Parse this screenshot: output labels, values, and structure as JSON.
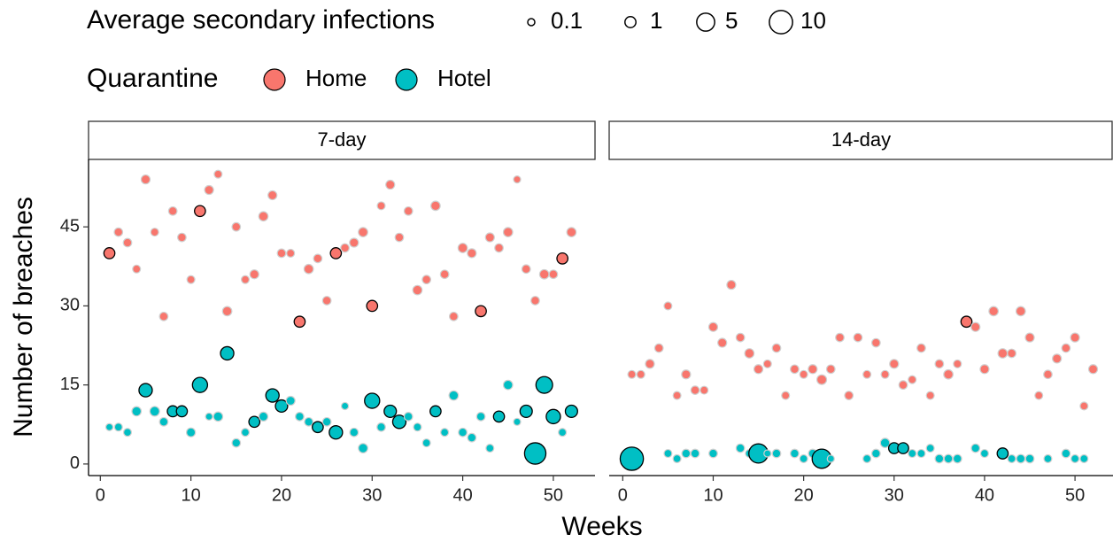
{
  "chart_data": [
    {
      "type": "scatter",
      "title": "7-day",
      "x_label": "Weeks",
      "y_label": "Number of breaches",
      "size_legend": {
        "title": "Average secondary infections",
        "values": [
          0.1,
          1,
          5,
          10
        ]
      },
      "color_legend_title": "Quarantine",
      "xlim": [
        -1.3,
        54.6
      ],
      "xticks": [
        0,
        10,
        20,
        30,
        40,
        50
      ],
      "ylim": [
        -2.2,
        57.8
      ],
      "yticks": [
        0,
        15,
        30,
        45
      ],
      "series": [
        {
          "name": "Home",
          "color": "#F8766D",
          "x": [
            1,
            2,
            3,
            4,
            5,
            6,
            7,
            8,
            9,
            10,
            11,
            12,
            13,
            14,
            15,
            16,
            17,
            18,
            19,
            20,
            21,
            22,
            23,
            24,
            25,
            26,
            27,
            28,
            29,
            30,
            31,
            32,
            33,
            34,
            35,
            36,
            37,
            38,
            39,
            40,
            41,
            42,
            43,
            44,
            45,
            46,
            47,
            48,
            49,
            50,
            51,
            52
          ],
          "values": [
            40,
            44,
            42,
            37,
            54,
            44,
            28,
            48,
            43,
            35,
            48,
            52,
            55,
            29,
            45,
            35,
            36,
            47,
            51,
            40,
            40,
            27,
            37,
            39,
            31,
            40,
            41,
            42,
            44,
            30,
            49,
            53,
            43,
            48,
            33,
            35,
            49,
            36,
            28,
            41,
            40,
            29,
            43,
            41,
            44,
            54,
            37,
            31,
            36,
            36,
            39,
            44
          ],
          "sizes": [
            1,
            0.3,
            0.3,
            0.2,
            0.4,
            0.2,
            0.3,
            0.3,
            0.3,
            0.2,
            1,
            0.4,
            0.2,
            0.5,
            0.3,
            0.2,
            0.4,
            0.5,
            0.4,
            0.3,
            0.2,
            1,
            0.5,
            0.3,
            0.3,
            1,
            0.3,
            0.4,
            0.5,
            1,
            0.2,
            0.4,
            0.3,
            0.3,
            0.5,
            0.3,
            0.5,
            0.3,
            0.3,
            0.5,
            0.4,
            1,
            0.4,
            0.3,
            0.5,
            0.1,
            0.3,
            0.3,
            0.5,
            0.3,
            1,
            0.5
          ]
        },
        {
          "name": "Hotel",
          "color": "#00BFC4",
          "x": [
            1,
            2,
            3,
            4,
            5,
            6,
            7,
            8,
            9,
            10,
            11,
            12,
            13,
            14,
            15,
            16,
            17,
            18,
            19,
            20,
            21,
            22,
            23,
            24,
            25,
            26,
            27,
            28,
            29,
            30,
            31,
            32,
            33,
            34,
            35,
            36,
            37,
            38,
            39,
            40,
            41,
            42,
            43,
            44,
            45,
            46,
            47,
            48,
            49,
            50,
            51,
            52
          ],
          "values": [
            7,
            7,
            6,
            10,
            14,
            10,
            8,
            10,
            10,
            6,
            15,
            9,
            9,
            21,
            4,
            6,
            8,
            9,
            13,
            11,
            12,
            9,
            8,
            7,
            8,
            6,
            11,
            6,
            3,
            12,
            7,
            10,
            8,
            9,
            7,
            4,
            10,
            6,
            13,
            6,
            5,
            9,
            3,
            9,
            15,
            8,
            10,
            2,
            15,
            9,
            6,
            10
          ],
          "sizes": [
            0.1,
            0.2,
            0.2,
            0.5,
            2,
            0.6,
            0.3,
            1,
            1,
            0.4,
            3,
            0.1,
            0.5,
            2,
            0.3,
            0.2,
            1,
            0.4,
            2,
            1.5,
            0.4,
            0.3,
            0.3,
            1,
            0.3,
            2,
            0.1,
            0.3,
            0.5,
            3,
            0.3,
            1.5,
            2,
            0.3,
            0.2,
            0.2,
            1,
            0.2,
            0.5,
            0.3,
            0.3,
            0.3,
            0.2,
            1,
            0.5,
            0.1,
            1.5,
            8,
            4,
            2.5,
            0.2,
            1.5
          ]
        }
      ]
    },
    {
      "type": "scatter",
      "title": "14-day",
      "xlim": [
        -1.5,
        54.2
      ],
      "xticks": [
        0,
        10,
        20,
        30,
        40,
        50
      ],
      "ylim": [
        -2.2,
        57.8
      ],
      "series": [
        {
          "name": "Home",
          "color": "#F8766D",
          "x": [
            1,
            2,
            3,
            4,
            5,
            6,
            7,
            8,
            9,
            10,
            11,
            12,
            13,
            14,
            15,
            16,
            17,
            18,
            19,
            20,
            21,
            22,
            23,
            24,
            25,
            26,
            27,
            28,
            29,
            30,
            31,
            32,
            33,
            34,
            35,
            36,
            37,
            38,
            39,
            40,
            41,
            42,
            43,
            44,
            45,
            46,
            47,
            48,
            49,
            50,
            51,
            52
          ],
          "values": [
            17,
            17,
            19,
            22,
            30,
            13,
            17,
            14,
            14,
            26,
            23,
            34,
            24,
            21,
            18,
            19,
            22,
            13,
            18,
            17,
            18,
            16,
            18,
            24,
            13,
            24,
            17,
            23,
            17,
            19,
            15,
            16,
            22,
            13,
            19,
            17,
            19,
            27,
            26,
            18,
            29,
            21,
            21,
            29,
            24,
            13,
            17,
            20,
            22,
            24,
            11,
            18
          ],
          "sizes": [
            0.2,
            0.2,
            0.4,
            0.3,
            0.2,
            0.2,
            0.4,
            0.3,
            0.2,
            0.4,
            0.4,
            0.4,
            0.3,
            0.5,
            0.4,
            0.2,
            0.3,
            0.2,
            0.3,
            0.2,
            0.4,
            0.6,
            0.3,
            0.3,
            0.3,
            0.3,
            0.2,
            0.3,
            0.2,
            0.4,
            0.3,
            0.2,
            0.3,
            0.2,
            0.3,
            0.5,
            0.2,
            1,
            0.4,
            0.4,
            0.5,
            0.5,
            0.3,
            0.5,
            0.4,
            0.2,
            0.3,
            0.4,
            0.3,
            0.4,
            0.2,
            0.4
          ]
        },
        {
          "name": "Hotel",
          "color": "#00BFC4",
          "x": [
            1,
            5,
            6,
            7,
            8,
            10,
            13,
            14,
            15,
            16,
            17,
            19,
            20,
            21,
            22,
            23,
            27,
            28,
            29,
            30,
            31,
            32,
            33,
            34,
            35,
            36,
            37,
            39,
            40,
            42,
            43,
            44,
            45,
            47,
            49,
            50,
            51
          ],
          "values": [
            1,
            2,
            1,
            2,
            2,
            2,
            3,
            2,
            2,
            2,
            2,
            2,
            1,
            2,
            1,
            1,
            1,
            2,
            4,
            3,
            3,
            2,
            2,
            3,
            1,
            1,
            1,
            3,
            2,
            2,
            1,
            1,
            1,
            1,
            2,
            1,
            1
          ],
          "sizes": [
            10,
            0.2,
            0.2,
            0.3,
            0.3,
            0.3,
            0.3,
            0.2,
            6,
            0.1,
            0.3,
            0.3,
            0.2,
            0.3,
            6,
            0.1,
            0.2,
            0.3,
            0.5,
            1,
            1,
            0.2,
            0.2,
            0.2,
            0.3,
            0.3,
            0.3,
            0.3,
            0.2,
            1,
            0.2,
            0.3,
            0.3,
            0.2,
            0.3,
            0.2,
            0.2
          ]
        }
      ]
    }
  ]
}
